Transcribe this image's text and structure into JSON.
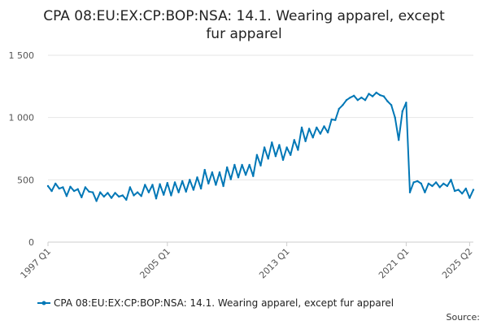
{
  "chart_data": {
    "type": "line",
    "title_line1": "CPA 08:EU:EX:CP:BOP:NSA: 14.1. Wearing apparel, except",
    "title_line2": "fur apparel",
    "xlabel": "",
    "ylabel": "",
    "ylim": [
      0,
      1500
    ],
    "yticks": [
      0,
      500,
      1000,
      1500
    ],
    "ytick_labels": [
      "0",
      "500",
      "1 000",
      "1 500"
    ],
    "xticks": [
      {
        "label": "1997 Q1",
        "x": 1997.0
      },
      {
        "label": "2005 Q1",
        "x": 2005.0
      },
      {
        "label": "2013 Q1",
        "x": 2013.0
      },
      {
        "label": "2021 Q1",
        "x": 2021.0
      },
      {
        "label": "2025 Q2",
        "x": 2025.25
      }
    ],
    "grid": true,
    "legend_position": "bottom",
    "source_label": "Source:",
    "series": [
      {
        "name": "CPA 08:EU:EX:CP:BOP:NSA: 14.1. Wearing apparel, except fur apparel",
        "color": "#0077b6",
        "start_year": 1997,
        "start_quarter": 1,
        "values": [
          450,
          410,
          470,
          430,
          440,
          370,
          445,
          410,
          425,
          360,
          440,
          405,
          400,
          330,
          400,
          365,
          395,
          355,
          395,
          365,
          375,
          340,
          440,
          375,
          400,
          370,
          460,
          400,
          460,
          350,
          465,
          380,
          475,
          375,
          480,
          400,
          490,
          405,
          500,
          420,
          520,
          430,
          580,
          470,
          560,
          460,
          560,
          450,
          600,
          505,
          620,
          520,
          620,
          540,
          620,
          530,
          700,
          615,
          760,
          670,
          800,
          690,
          780,
          660,
          760,
          700,
          820,
          740,
          920,
          810,
          910,
          840,
          920,
          870,
          930,
          880,
          985,
          980,
          1070,
          1100,
          1140,
          1160,
          1175,
          1140,
          1160,
          1140,
          1190,
          1170,
          1200,
          1180,
          1170,
          1130,
          1100,
          1000,
          820,
          1050,
          1120,
          400,
          480,
          490,
          470,
          400,
          470,
          450,
          480,
          440,
          470,
          450,
          500,
          410,
          420,
          390,
          430,
          355,
          420
        ]
      }
    ]
  }
}
